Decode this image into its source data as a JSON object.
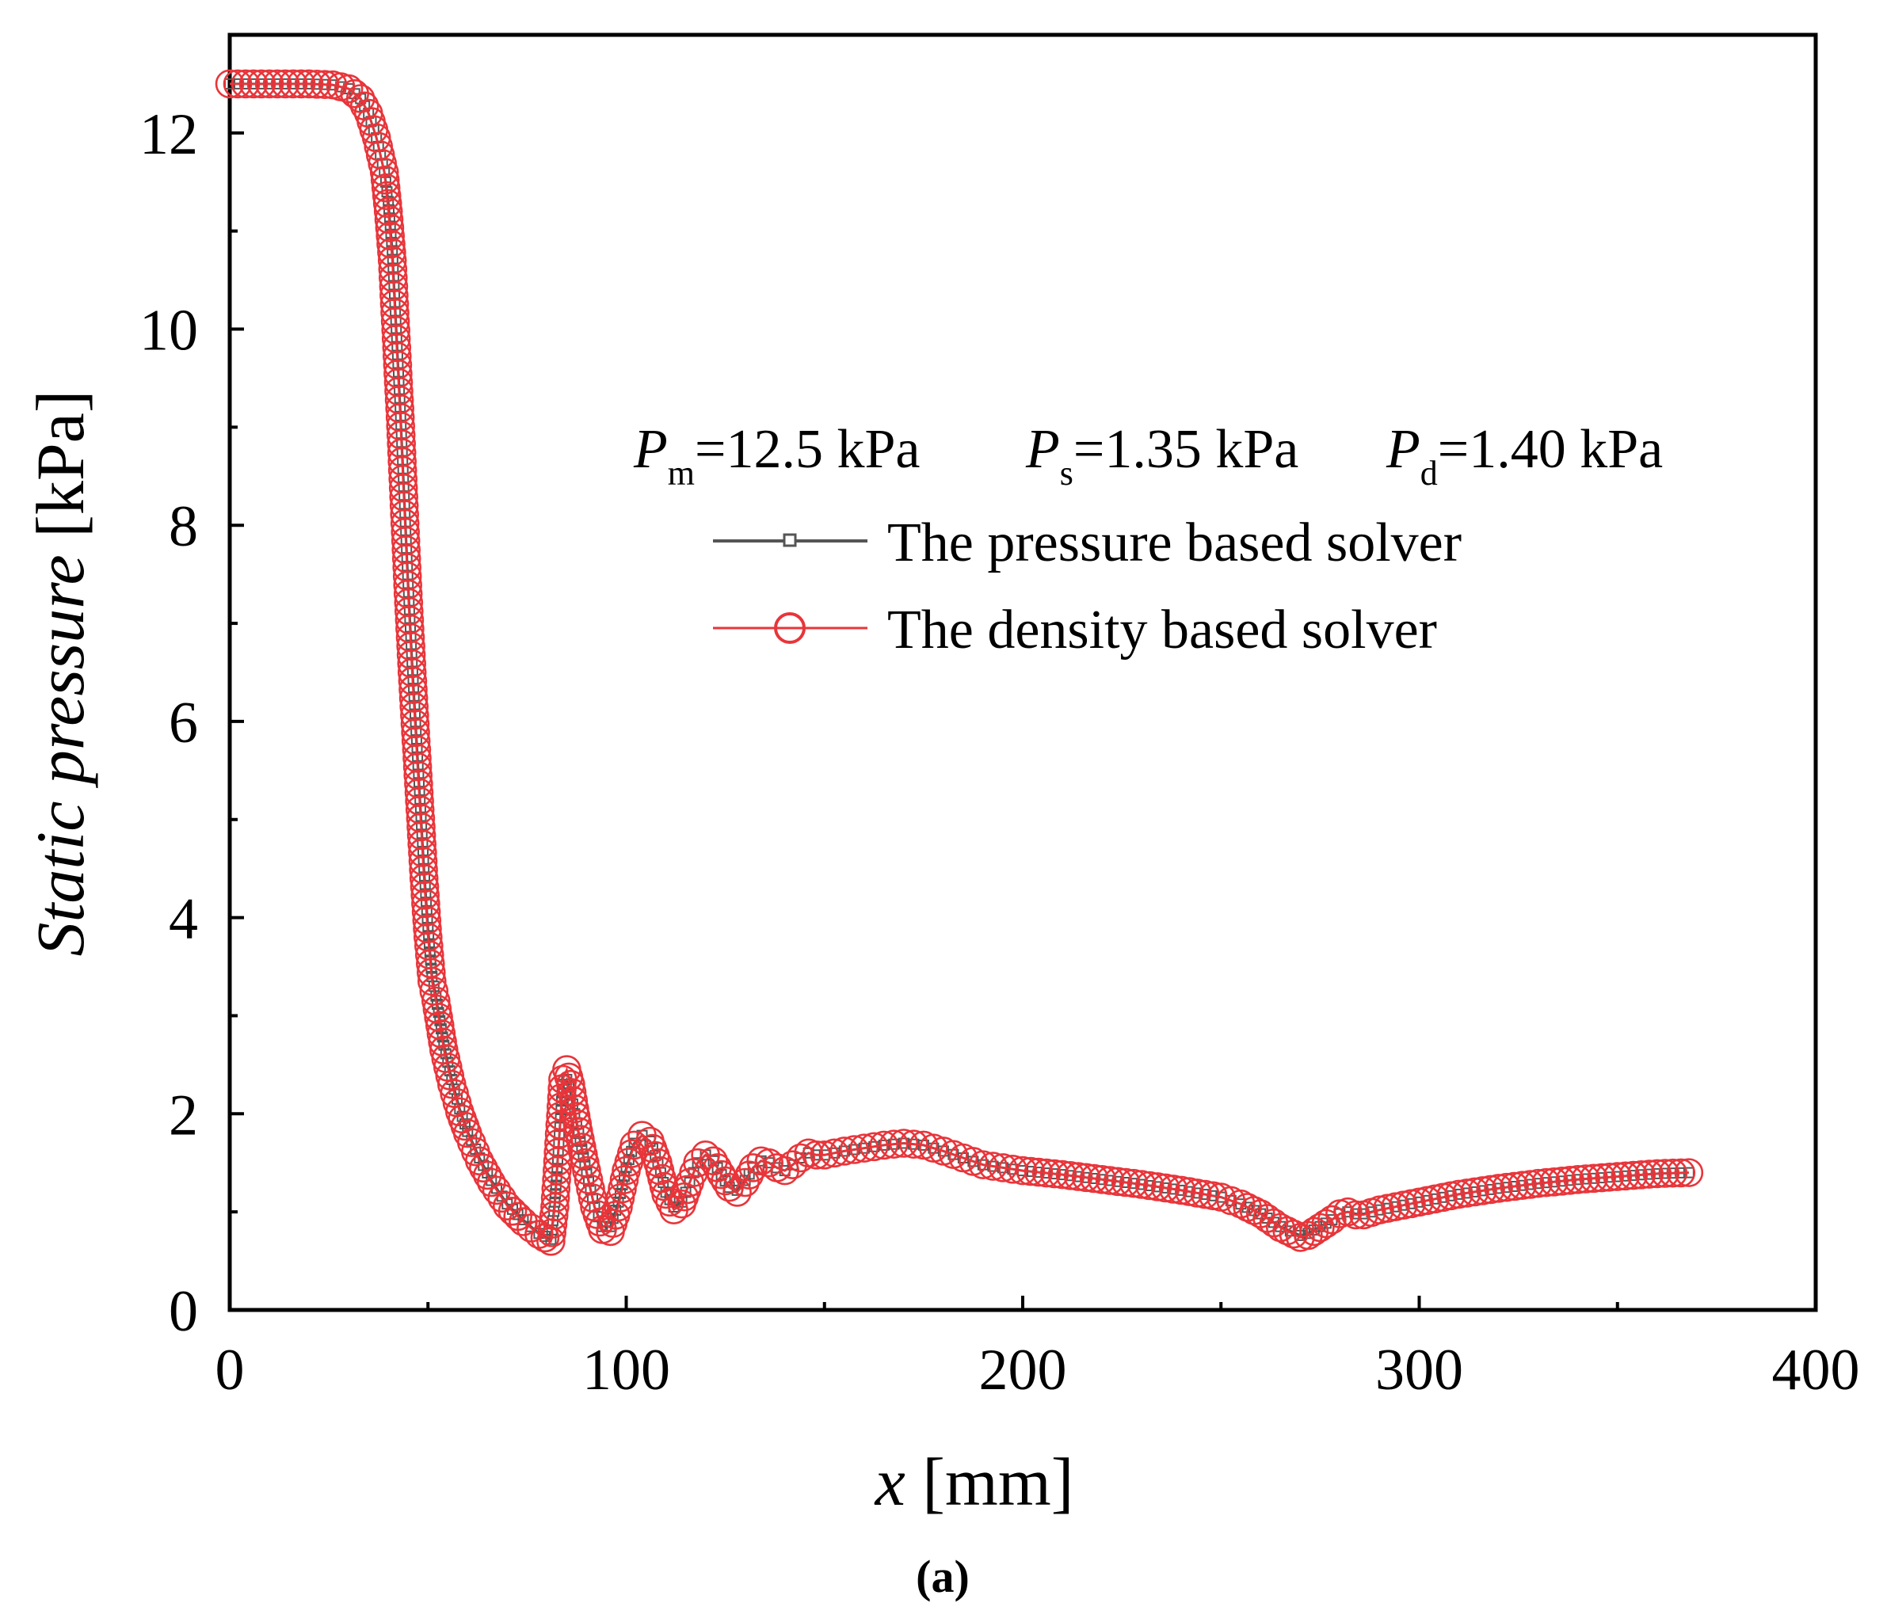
{
  "chart_data": {
    "type": "line",
    "xlabel_var": "x",
    "xlabel_unit": "[mm]",
    "ylabel_var": "Static pressure",
    "ylabel_unit": "[kPa]",
    "xlim": [
      0,
      400
    ],
    "ylim": [
      0,
      13
    ],
    "x_ticks": [
      0,
      100,
      200,
      300,
      400
    ],
    "y_ticks": [
      0,
      2,
      4,
      6,
      8,
      10,
      12
    ],
    "x_tick_labels": [
      "0",
      "100",
      "200",
      "300",
      "400"
    ],
    "y_tick_labels": [
      "0",
      "2",
      "4",
      "6",
      "8",
      "10",
      "12"
    ],
    "grid": false,
    "legend_position": "upper-right",
    "annotation": {
      "pm_var": "P",
      "pm_sub": "m",
      "pm_value": "=12.5 kPa",
      "ps_var": "P",
      "ps_sub": "s",
      "ps_value": "=1.35 kPa",
      "pd_var": "P",
      "pd_sub": "d",
      "pd_value": "=1.40 kPa"
    },
    "caption": "(a)",
    "series": [
      {
        "name": "The pressure based solver",
        "color": "#555555",
        "marker": "square",
        "x": [
          0,
          10,
          20,
          26,
          30,
          33,
          35,
          37,
          39,
          40,
          41,
          42,
          43,
          44,
          45,
          46,
          47,
          48,
          49,
          50,
          51,
          52,
          53,
          54,
          56,
          58,
          60,
          63,
          66,
          70,
          74,
          78,
          81,
          82,
          83,
          84,
          85,
          86,
          87,
          88,
          90,
          92,
          94,
          96,
          98,
          100,
          102,
          104,
          106,
          108,
          110,
          112,
          114,
          116,
          118,
          120,
          122,
          124,
          126,
          128,
          130,
          132,
          134,
          136,
          138,
          140,
          142,
          144,
          146,
          148,
          150,
          155,
          160,
          165,
          170,
          175,
          180,
          185,
          190,
          195,
          200,
          210,
          220,
          230,
          240,
          250,
          255,
          260,
          265,
          270,
          272,
          275,
          278,
          280,
          282,
          284,
          286,
          290,
          300,
          310,
          320,
          330,
          340,
          350,
          360,
          368
        ],
        "values": [
          12.5,
          12.5,
          12.5,
          12.49,
          12.45,
          12.35,
          12.2,
          11.95,
          11.6,
          11.3,
          10.8,
          10.0,
          9.2,
          8.3,
          7.4,
          6.6,
          5.9,
          5.2,
          4.5,
          3.9,
          3.4,
          3.2,
          2.95,
          2.7,
          2.35,
          2.05,
          1.82,
          1.55,
          1.32,
          1.08,
          0.92,
          0.78,
          0.72,
          1.1,
          1.7,
          2.3,
          2.35,
          2.2,
          2.0,
          1.8,
          1.4,
          1.05,
          0.85,
          0.85,
          1.1,
          1.45,
          1.7,
          1.78,
          1.72,
          1.5,
          1.2,
          1.05,
          1.1,
          1.3,
          1.5,
          1.58,
          1.52,
          1.38,
          1.25,
          1.22,
          1.32,
          1.45,
          1.52,
          1.5,
          1.45,
          1.42,
          1.48,
          1.55,
          1.6,
          1.58,
          1.58,
          1.62,
          1.65,
          1.68,
          1.7,
          1.68,
          1.62,
          1.55,
          1.48,
          1.45,
          1.42,
          1.38,
          1.33,
          1.28,
          1.22,
          1.15,
          1.08,
          0.98,
          0.85,
          0.76,
          0.78,
          0.85,
          0.92,
          0.98,
          1.0,
          0.98,
          0.98,
          1.02,
          1.1,
          1.18,
          1.24,
          1.29,
          1.33,
          1.36,
          1.39,
          1.4
        ]
      },
      {
        "name": "The density based solver",
        "color": "#e8353a",
        "marker": "circle",
        "x": [
          0,
          10,
          20,
          26,
          30,
          33,
          35,
          37,
          39,
          40,
          41,
          42,
          43,
          44,
          45,
          46,
          47,
          48,
          49,
          50,
          51,
          52,
          53,
          54,
          56,
          58,
          60,
          63,
          66,
          70,
          74,
          78,
          81,
          82,
          83,
          84,
          85,
          86,
          87,
          88,
          90,
          92,
          94,
          96,
          98,
          100,
          102,
          104,
          106,
          108,
          110,
          112,
          114,
          116,
          118,
          120,
          122,
          124,
          126,
          128,
          130,
          132,
          134,
          136,
          138,
          140,
          142,
          144,
          146,
          148,
          150,
          155,
          160,
          165,
          170,
          175,
          180,
          185,
          190,
          195,
          200,
          210,
          220,
          230,
          240,
          250,
          255,
          260,
          265,
          270,
          272,
          275,
          278,
          280,
          282,
          284,
          286,
          290,
          300,
          310,
          320,
          330,
          340,
          350,
          360,
          368
        ],
        "values": [
          12.5,
          12.5,
          12.5,
          12.49,
          12.45,
          12.35,
          12.2,
          11.95,
          11.6,
          11.2,
          10.7,
          9.9,
          9.1,
          8.2,
          7.3,
          6.5,
          5.8,
          5.1,
          4.4,
          3.8,
          3.35,
          3.15,
          2.9,
          2.65,
          2.3,
          2.02,
          1.8,
          1.52,
          1.3,
          1.06,
          0.9,
          0.77,
          0.7,
          1.05,
          1.7,
          2.35,
          2.45,
          2.3,
          2.05,
          1.82,
          1.42,
          1.05,
          0.82,
          0.8,
          1.05,
          1.42,
          1.68,
          1.78,
          1.72,
          1.5,
          1.18,
          1.02,
          1.08,
          1.3,
          1.5,
          1.58,
          1.52,
          1.38,
          1.25,
          1.2,
          1.3,
          1.45,
          1.52,
          1.5,
          1.45,
          1.42,
          1.48,
          1.55,
          1.6,
          1.58,
          1.58,
          1.62,
          1.65,
          1.68,
          1.7,
          1.68,
          1.62,
          1.55,
          1.48,
          1.45,
          1.42,
          1.38,
          1.33,
          1.28,
          1.22,
          1.15,
          1.08,
          0.98,
          0.84,
          0.74,
          0.76,
          0.84,
          0.92,
          0.98,
          1.0,
          0.97,
          0.97,
          1.02,
          1.1,
          1.18,
          1.24,
          1.29,
          1.33,
          1.36,
          1.39,
          1.4
        ]
      }
    ]
  }
}
